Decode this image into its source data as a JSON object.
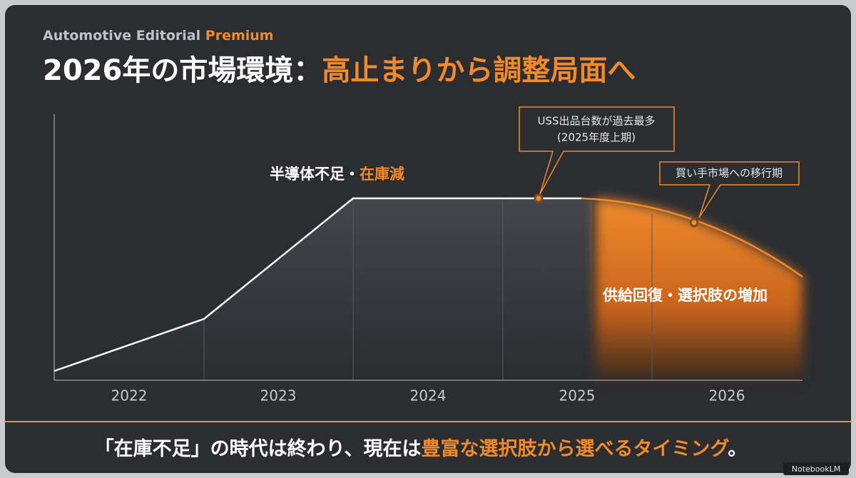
{
  "header": {
    "brand": "Automotive Editorial",
    "brand_accent": "Premium",
    "title": "2026年の市場環境：",
    "title_accent": "高止まりから調整局面へ"
  },
  "diagram": {
    "periods": [
      "2022",
      "2023",
      "2024",
      "2025",
      "2026"
    ],
    "label_left": "半導体不足・",
    "label_left_accent": "在庫減",
    "label_right": "供給回復・選択肢の増加",
    "callout_1": [
      "USS出品台数が過去最多",
      "(2025年度上期)"
    ],
    "callout_2": "買い手市場への移行期"
  },
  "footer": {
    "text_1": "「在庫不足」の時代は終わり、現在は",
    "text_accent": "豊富な選択肢から選べるタイミング",
    "text_2": "。"
  },
  "watermark": "NotebookLM"
}
